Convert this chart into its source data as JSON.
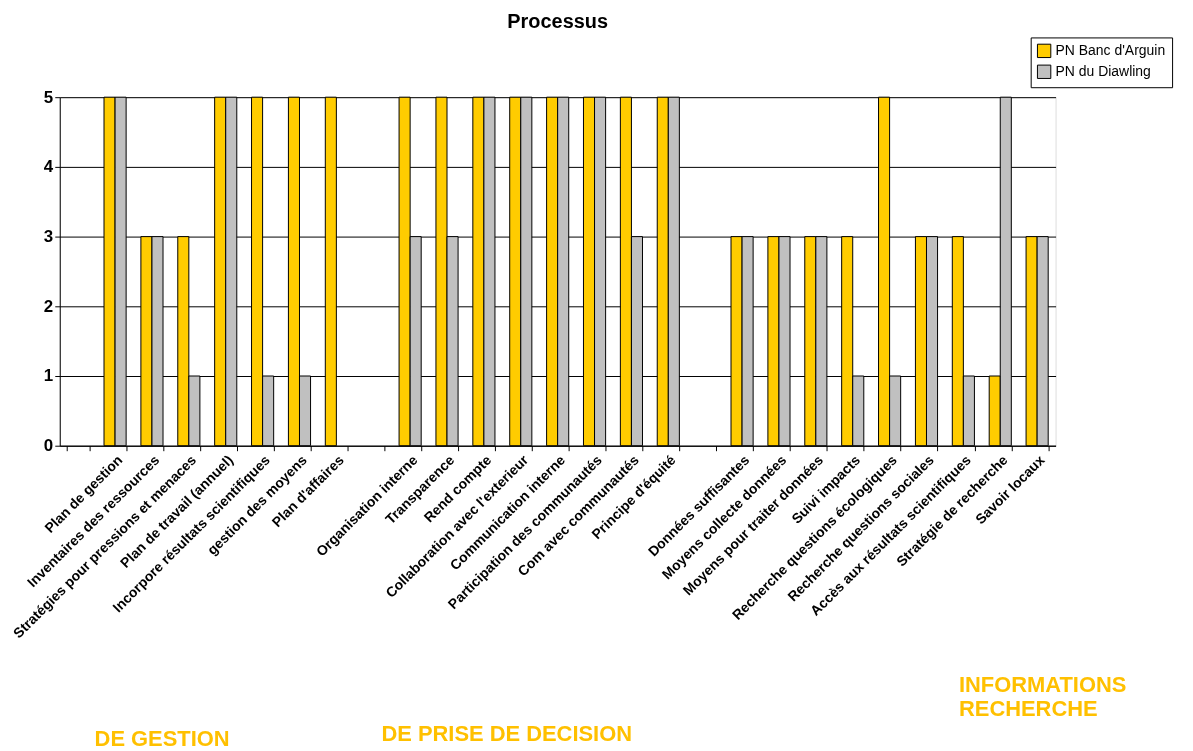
{
  "chart_data": {
    "type": "bar",
    "title": "Processus",
    "categories": [
      null,
      "Plan de gestion",
      "Inventaires des ressources",
      "Stratégies pour pressions et menaces",
      "Plan de travail (annuel)",
      "Incorpore résultats scientifiques",
      "gestion des moyens",
      "Plan d'affaires",
      null,
      "Organisation interne",
      "Transparence",
      "Rend compte",
      "Collaboration avec l'exterieur",
      "Communication interne",
      "Participation des communautés",
      "Com avec communautés",
      "Principe d'équité",
      null,
      "Données suffisantes",
      "Moyens collecte données",
      "Moyens pour traiter données",
      "Suivi impacts",
      "Recherche questions écologiques",
      "Recherche questions sociales",
      "Accès aux résultats scientifiques",
      "Stratégie de recherche",
      "Savoir locaux"
    ],
    "series": [
      {
        "name": "PN Banc d'Arguin",
        "color": "#ffcc00",
        "values": [
          null,
          5,
          3,
          3,
          5,
          5,
          5,
          5,
          null,
          5,
          5,
          5,
          5,
          5,
          5,
          5,
          5,
          null,
          3,
          3,
          3,
          3,
          5,
          3,
          3,
          1,
          3
        ]
      },
      {
        "name": "PN du Diawling",
        "color": "#c0c0c0",
        "values": [
          null,
          5,
          3,
          1,
          5,
          1,
          1,
          null,
          null,
          3,
          3,
          5,
          5,
          5,
          5,
          3,
          5,
          null,
          3,
          3,
          3,
          1,
          1,
          3,
          1,
          5,
          3
        ]
      }
    ],
    "ylim": [
      0,
      5
    ],
    "yticks": [
      0,
      1,
      2,
      3,
      4,
      5
    ],
    "grid": "y",
    "legend": "top right",
    "annotations": [
      "DE GESTION",
      "DE PRISE DE DECISION",
      "INFORMATIONS\nRECHERCHE"
    ]
  }
}
